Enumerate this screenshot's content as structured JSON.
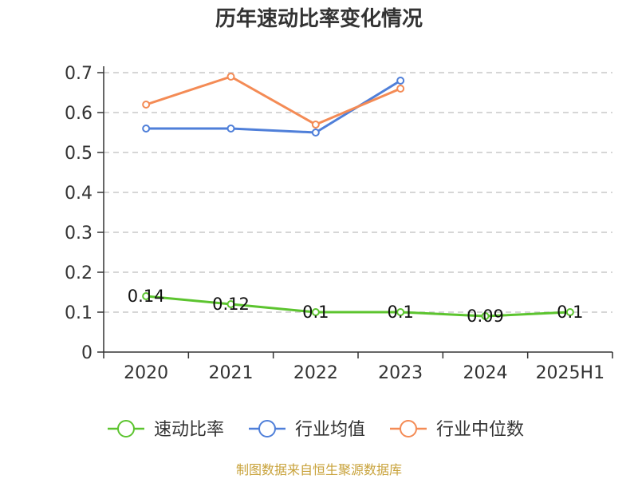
{
  "chart_data": {
    "type": "line",
    "title": "历年速动比率变化情况",
    "categories": [
      "2020",
      "2021",
      "2022",
      "2023",
      "2024",
      "2025H1"
    ],
    "yticks": [
      "0",
      "0.1",
      "0.2",
      "0.3",
      "0.4",
      "0.5",
      "0.6",
      "0.7"
    ],
    "ylim": [
      0,
      0.7
    ],
    "grid": true,
    "legend_position": "bottom",
    "series": [
      {
        "name": "速动比率",
        "color": "#5cc42f",
        "values": [
          0.14,
          0.12,
          0.1,
          0.1,
          0.09,
          0.1
        ],
        "labels": [
          "0.14",
          "0.12",
          "0.1",
          "0.1",
          "0.09",
          "0.1"
        ]
      },
      {
        "name": "行业均值",
        "color": "#4f7fd9",
        "values": [
          0.56,
          0.56,
          0.55,
          0.68,
          null,
          null
        ]
      },
      {
        "name": "行业中位数",
        "color": "#f48b55",
        "values": [
          0.62,
          0.69,
          0.57,
          0.66,
          null,
          null
        ]
      }
    ]
  },
  "source": "制图数据来自恒生聚源数据库"
}
